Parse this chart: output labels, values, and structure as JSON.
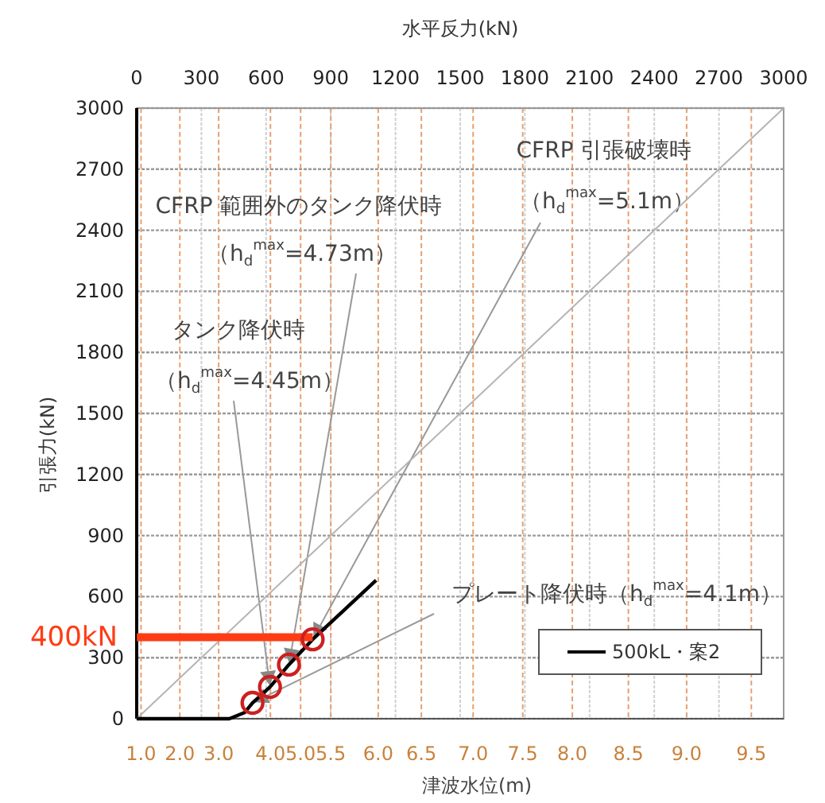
{
  "chart_data": {
    "type": "line",
    "xlabel": "水平反力(kN)",
    "ylabel": "引張力(kN)",
    "xlim": [
      0,
      3000
    ],
    "ylim": [
      0,
      3000
    ],
    "xticks": [
      0,
      300,
      600,
      900,
      1200,
      1500,
      1800,
      2100,
      2400,
      2700,
      3000
    ],
    "ref_lines": [
      {
        "axis": "x",
        "value": 20,
        "color": "#e8a070",
        "line_style": "dashed"
      },
      {
        "axis": "x",
        "value": 200,
        "color": "#e8a070",
        "line_style": "dashed"
      },
      {
        "axis": "x",
        "value": 380,
        "color": "#e8a070",
        "line_style": "dashed"
      },
      {
        "axis": "x",
        "value": 620,
        "color": "#e8a070",
        "line_style": "dashed"
      },
      {
        "axis": "x",
        "value": 760,
        "color": "#e8a070",
        "line_style": "dashed"
      },
      {
        "axis": "x",
        "value": 900,
        "color": "#e8a070",
        "line_style": "dashed"
      },
      {
        "axis": "x",
        "value": 1120,
        "color": "#e8a070",
        "line_style": "dashed"
      },
      {
        "axis": "x",
        "value": 1320,
        "color": "#e8a070",
        "line_style": "dashed"
      },
      {
        "axis": "x",
        "value": 1560,
        "color": "#e8a070",
        "line_style": "dashed"
      },
      {
        "axis": "x",
        "value": 1790,
        "color": "#e8a070",
        "line_style": "dashed"
      },
      {
        "axis": "x",
        "value": 2020,
        "color": "#e8a070",
        "line_style": "dashed"
      },
      {
        "axis": "x",
        "value": 2280,
        "color": "#e8a070",
        "line_style": "dashed"
      },
      {
        "axis": "x",
        "value": 2550,
        "color": "#e8a070",
        "line_style": "dashed"
      },
      {
        "axis": "x",
        "value": 2850,
        "color": "#e8a070",
        "line_style": "dashed"
      }
    ],
    "yticks": [
      0,
      300,
      600,
      900,
      1200,
      1500,
      1800,
      2100,
      2400,
      2700,
      3000
    ],
    "grid": true,
    "legend": "bottom right",
    "series": [
      {
        "color": "#b4b4b4",
        "x": [
          0,
          3000
        ],
        "values": [
          0,
          3000
        ]
      },
      {
        "name": "500kL・案2",
        "color": "#000000",
        "x": [
          0,
          430,
          500,
          537,
          618,
          706,
          816,
          1110
        ],
        "values": [
          0,
          0,
          30,
          78,
          156,
          266,
          390,
          680
        ]
      },
      {
        "name": "400kN",
        "color": "#ff3c14",
        "x": [
          0,
          816
        ],
        "values": [
          400,
          400
        ]
      },
      {
        "type": "scatter",
        "marker": "circle",
        "color": "#cc2020",
        "x": [
          537,
          618,
          706,
          816
        ],
        "values": [
          78,
          156,
          266,
          390
        ]
      }
    ],
    "annotations": [
      "CFRP 引張破壊時",
      {
        "text": "（h$_{d}$$^{max}$=5.1m）",
        "x": 816,
        "y": 390
      },
      "CFRP 範囲外のタンク降伏時",
      {
        "text": "（h$_{d}$$^{max}$=4.73m）",
        "x": 706,
        "y": 266
      },
      "タンク降伏時",
      {
        "text": "（h$_{d}$$^{max}$=4.45m）",
        "x": 618,
        "y": 156
      },
      {
        "text": "プレート降伏時（h$_{d}$$^{max}$=4.1m）",
        "x": 537,
        "y": 78
      },
      "津波水位(m)",
      "1.0",
      "2.0",
      "3.0",
      "4.0",
      "5.0",
      "5.5",
      "6.0",
      "6.5",
      "7.0",
      "7.5",
      "8.0",
      "8.5",
      "9.0",
      "9.5"
    ]
  }
}
